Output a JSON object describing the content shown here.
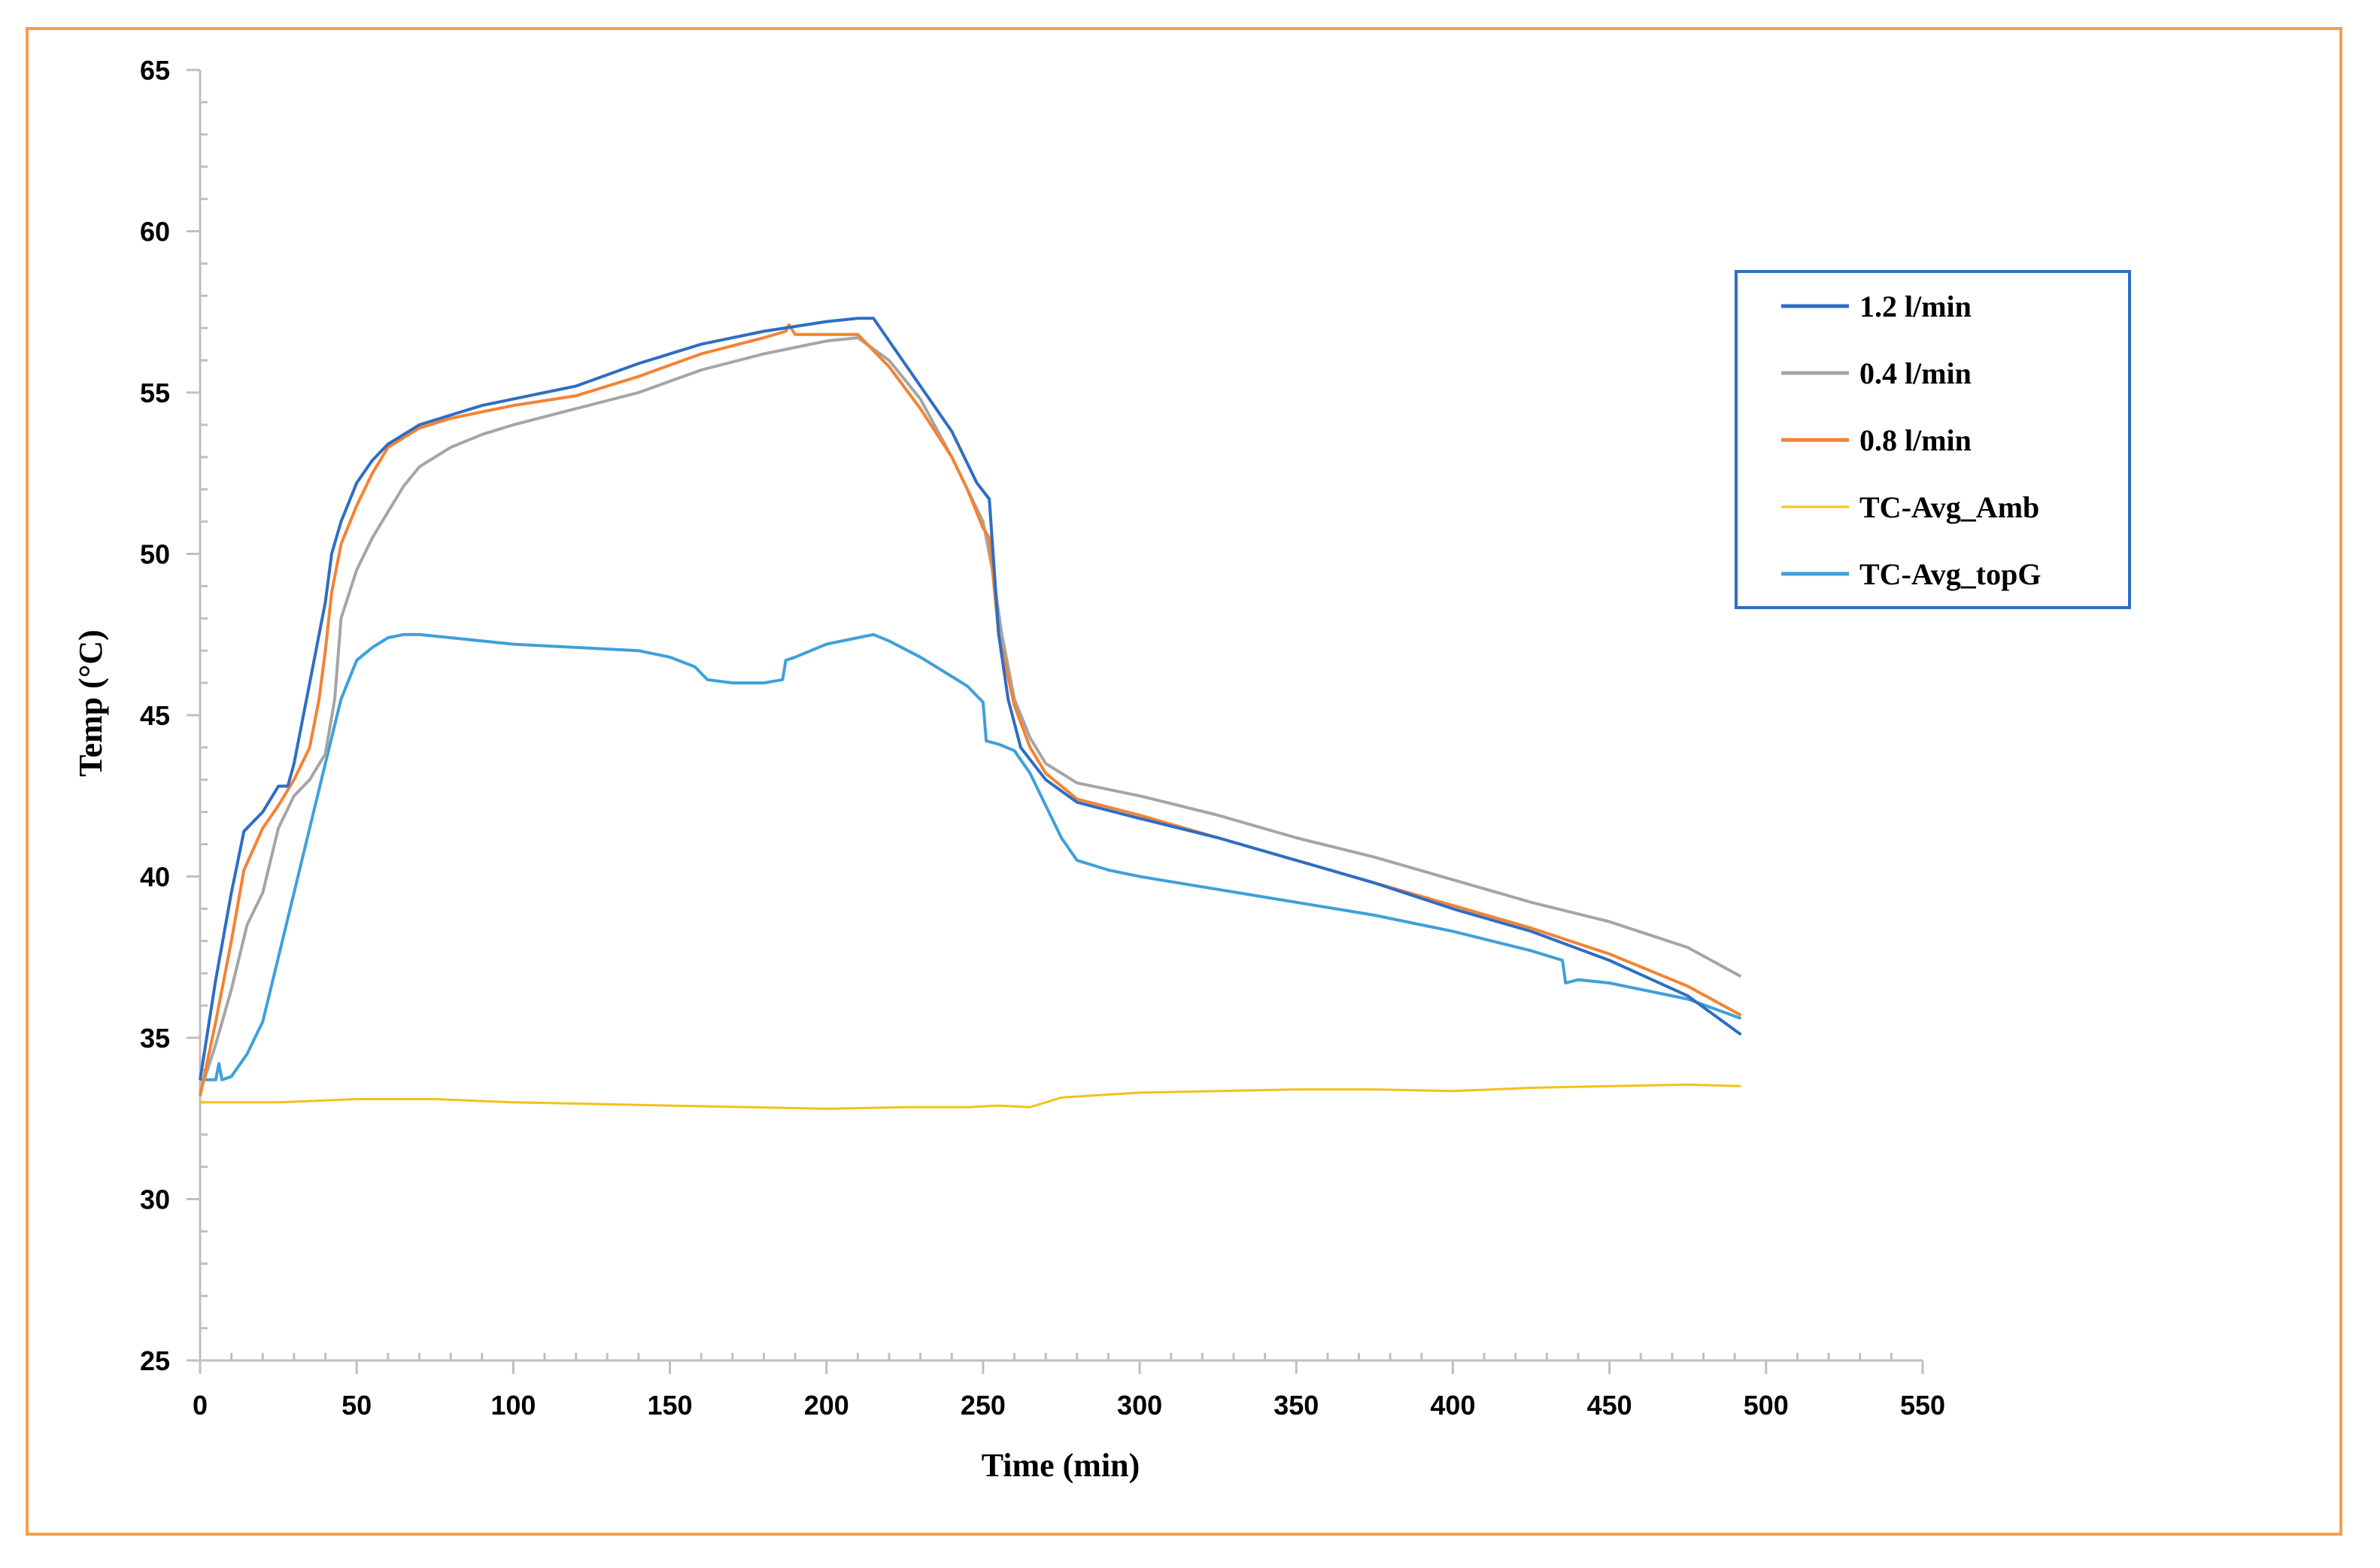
{
  "chart_data": {
    "type": "line",
    "title": "",
    "xlabel": "Time (min)",
    "ylabel": "Temp (°C)",
    "xlim": [
      0,
      550
    ],
    "ylim": [
      25,
      65
    ],
    "x_ticks": [
      0,
      50,
      100,
      150,
      200,
      250,
      300,
      350,
      400,
      450,
      500,
      550
    ],
    "y_ticks": [
      25,
      30,
      35,
      40,
      45,
      50,
      55,
      60,
      65
    ],
    "grid": false,
    "legend_position": "right",
    "series": [
      {
        "name": "1.2 l/min",
        "color": "#2E6DC4",
        "points": [
          [
            0,
            33.7
          ],
          [
            5,
            36.8
          ],
          [
            10,
            39.5
          ],
          [
            14,
            41.4
          ],
          [
            20,
            42.0
          ],
          [
            25,
            42.8
          ],
          [
            28,
            42.8
          ],
          [
            30,
            43.5
          ],
          [
            35,
            46.0
          ],
          [
            40,
            48.5
          ],
          [
            42,
            50.0
          ],
          [
            45,
            51.0
          ],
          [
            50,
            52.2
          ],
          [
            55,
            52.9
          ],
          [
            60,
            53.4
          ],
          [
            70,
            54.0
          ],
          [
            80,
            54.3
          ],
          [
            90,
            54.6
          ],
          [
            100,
            54.8
          ],
          [
            120,
            55.2
          ],
          [
            140,
            55.9
          ],
          [
            160,
            56.5
          ],
          [
            180,
            56.9
          ],
          [
            200,
            57.2
          ],
          [
            210,
            57.3
          ],
          [
            215,
            57.3
          ],
          [
            220,
            56.6
          ],
          [
            230,
            55.2
          ],
          [
            240,
            53.8
          ],
          [
            248,
            52.2
          ],
          [
            252,
            51.7
          ],
          [
            255,
            47.5
          ],
          [
            258,
            45.5
          ],
          [
            262,
            44.0
          ],
          [
            270,
            43.0
          ],
          [
            280,
            42.3
          ],
          [
            300,
            41.8
          ],
          [
            325,
            41.2
          ],
          [
            350,
            40.5
          ],
          [
            375,
            39.8
          ],
          [
            400,
            39.0
          ],
          [
            425,
            38.3
          ],
          [
            450,
            37.4
          ],
          [
            475,
            36.3
          ],
          [
            492,
            35.1
          ]
        ]
      },
      {
        "name": "0.4 l/min",
        "color": "#A5A5A5",
        "points": [
          [
            0,
            33.3
          ],
          [
            5,
            34.8
          ],
          [
            10,
            36.5
          ],
          [
            15,
            38.5
          ],
          [
            20,
            39.5
          ],
          [
            25,
            41.5
          ],
          [
            30,
            42.5
          ],
          [
            35,
            43.0
          ],
          [
            40,
            43.8
          ],
          [
            43,
            45.5
          ],
          [
            45,
            48.0
          ],
          [
            50,
            49.5
          ],
          [
            55,
            50.5
          ],
          [
            60,
            51.3
          ],
          [
            65,
            52.1
          ],
          [
            70,
            52.7
          ],
          [
            80,
            53.3
          ],
          [
            90,
            53.7
          ],
          [
            100,
            54.0
          ],
          [
            120,
            54.5
          ],
          [
            140,
            55.0
          ],
          [
            160,
            55.7
          ],
          [
            180,
            56.2
          ],
          [
            200,
            56.6
          ],
          [
            210,
            56.7
          ],
          [
            220,
            56.0
          ],
          [
            230,
            54.8
          ],
          [
            240,
            53.0
          ],
          [
            250,
            51.0
          ],
          [
            253,
            49.5
          ],
          [
            256,
            47.5
          ],
          [
            260,
            45.5
          ],
          [
            265,
            44.3
          ],
          [
            270,
            43.5
          ],
          [
            280,
            42.9
          ],
          [
            300,
            42.5
          ],
          [
            325,
            41.9
          ],
          [
            350,
            41.2
          ],
          [
            375,
            40.6
          ],
          [
            400,
            39.9
          ],
          [
            425,
            39.2
          ],
          [
            450,
            38.6
          ],
          [
            475,
            37.8
          ],
          [
            492,
            36.9
          ]
        ]
      },
      {
        "name": "0.8 l/min",
        "color": "#F58233",
        "points": [
          [
            0,
            33.2
          ],
          [
            5,
            35.5
          ],
          [
            10,
            38.0
          ],
          [
            14,
            40.2
          ],
          [
            20,
            41.5
          ],
          [
            25,
            42.2
          ],
          [
            30,
            43.0
          ],
          [
            35,
            44.0
          ],
          [
            38,
            45.5
          ],
          [
            40,
            47.0
          ],
          [
            42,
            48.8
          ],
          [
            45,
            50.3
          ],
          [
            50,
            51.5
          ],
          [
            55,
            52.5
          ],
          [
            60,
            53.3
          ],
          [
            70,
            53.9
          ],
          [
            80,
            54.2
          ],
          [
            90,
            54.4
          ],
          [
            100,
            54.6
          ],
          [
            120,
            54.9
          ],
          [
            140,
            55.5
          ],
          [
            160,
            56.2
          ],
          [
            180,
            56.7
          ],
          [
            187,
            56.9
          ],
          [
            188,
            57.1
          ],
          [
            190,
            56.8
          ],
          [
            200,
            56.8
          ],
          [
            210,
            56.8
          ],
          [
            220,
            55.8
          ],
          [
            230,
            54.5
          ],
          [
            240,
            53.0
          ],
          [
            245,
            52.0
          ],
          [
            250,
            50.8
          ],
          [
            252,
            50.5
          ],
          [
            255,
            47.5
          ],
          [
            260,
            45.3
          ],
          [
            265,
            44.0
          ],
          [
            270,
            43.2
          ],
          [
            280,
            42.4
          ],
          [
            300,
            41.9
          ],
          [
            325,
            41.2
          ],
          [
            350,
            40.5
          ],
          [
            375,
            39.8
          ],
          [
            400,
            39.1
          ],
          [
            425,
            38.4
          ],
          [
            450,
            37.6
          ],
          [
            475,
            36.6
          ],
          [
            492,
            35.7
          ]
        ]
      },
      {
        "name": "TC-Avg_Amb",
        "color": "#F2C216",
        "points": [
          [
            0,
            33.0
          ],
          [
            25,
            33.0
          ],
          [
            50,
            33.1
          ],
          [
            75,
            33.1
          ],
          [
            100,
            33.0
          ],
          [
            125,
            32.95
          ],
          [
            150,
            32.9
          ],
          [
            175,
            32.85
          ],
          [
            200,
            32.8
          ],
          [
            225,
            32.85
          ],
          [
            245,
            32.85
          ],
          [
            255,
            32.9
          ],
          [
            265,
            32.85
          ],
          [
            270,
            33.0
          ],
          [
            275,
            33.15
          ],
          [
            300,
            33.3
          ],
          [
            325,
            33.35
          ],
          [
            350,
            33.4
          ],
          [
            375,
            33.4
          ],
          [
            400,
            33.35
          ],
          [
            425,
            33.45
          ],
          [
            450,
            33.5
          ],
          [
            475,
            33.55
          ],
          [
            492,
            33.5
          ]
        ]
      },
      {
        "name": "TC-Avg_topG",
        "color": "#3FA0DA",
        "points": [
          [
            0,
            33.7
          ],
          [
            5,
            33.7
          ],
          [
            6,
            34.2
          ],
          [
            7,
            33.7
          ],
          [
            10,
            33.8
          ],
          [
            15,
            34.5
          ],
          [
            20,
            35.5
          ],
          [
            25,
            37.5
          ],
          [
            30,
            39.5
          ],
          [
            35,
            41.5
          ],
          [
            40,
            43.5
          ],
          [
            45,
            45.5
          ],
          [
            50,
            46.7
          ],
          [
            55,
            47.1
          ],
          [
            60,
            47.4
          ],
          [
            65,
            47.5
          ],
          [
            70,
            47.5
          ],
          [
            80,
            47.4
          ],
          [
            90,
            47.3
          ],
          [
            100,
            47.2
          ],
          [
            120,
            47.1
          ],
          [
            140,
            47.0
          ],
          [
            150,
            46.8
          ],
          [
            158,
            46.5
          ],
          [
            162,
            46.1
          ],
          [
            170,
            46.0
          ],
          [
            180,
            46.0
          ],
          [
            186,
            46.1
          ],
          [
            187,
            46.7
          ],
          [
            190,
            46.8
          ],
          [
            200,
            47.2
          ],
          [
            210,
            47.4
          ],
          [
            215,
            47.5
          ],
          [
            220,
            47.3
          ],
          [
            230,
            46.8
          ],
          [
            240,
            46.2
          ],
          [
            245,
            45.9
          ],
          [
            250,
            45.4
          ],
          [
            251,
            44.2
          ],
          [
            255,
            44.1
          ],
          [
            260,
            43.9
          ],
          [
            265,
            43.2
          ],
          [
            270,
            42.2
          ],
          [
            275,
            41.2
          ],
          [
            280,
            40.5
          ],
          [
            290,
            40.2
          ],
          [
            300,
            40.0
          ],
          [
            325,
            39.6
          ],
          [
            350,
            39.2
          ],
          [
            375,
            38.8
          ],
          [
            400,
            38.3
          ],
          [
            425,
            37.7
          ],
          [
            435,
            37.4
          ],
          [
            436,
            36.7
          ],
          [
            440,
            36.8
          ],
          [
            450,
            36.7
          ],
          [
            475,
            36.2
          ],
          [
            492,
            35.6
          ]
        ]
      }
    ]
  }
}
